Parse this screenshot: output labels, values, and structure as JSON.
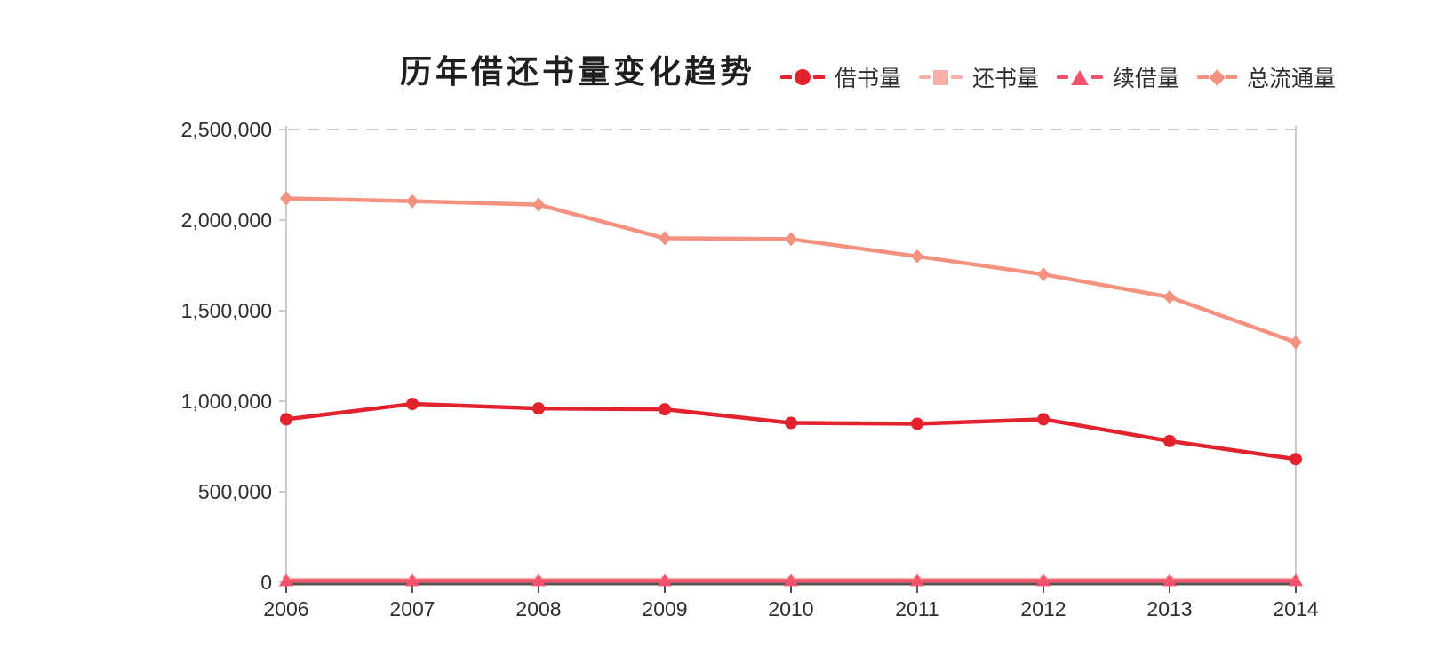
{
  "chart_data": {
    "type": "line",
    "title": "历年借还书量变化趋势",
    "categories": [
      "2006",
      "2007",
      "2008",
      "2009",
      "2010",
      "2011",
      "2012",
      "2013",
      "2014"
    ],
    "series": [
      {
        "key": "borrow",
        "name": "借书量",
        "marker": "circle",
        "color": "#e2232e",
        "values": [
          900000,
          985000,
          960000,
          955000,
          880000,
          875000,
          900000,
          780000,
          680000
        ]
      },
      {
        "key": "return",
        "name": "还书量",
        "marker": "square",
        "color": "#f6b0a7",
        "values": [
          15000,
          15000,
          15000,
          15000,
          15000,
          15000,
          15000,
          15000,
          15000
        ]
      },
      {
        "key": "renew",
        "name": "续借量",
        "marker": "triangle",
        "color": "#f4516c",
        "values": [
          8000,
          8000,
          8000,
          8000,
          8000,
          8000,
          8000,
          8000,
          8000
        ]
      },
      {
        "key": "total",
        "name": "总流通量",
        "marker": "diamond",
        "color": "#f4917f",
        "values": [
          2120000,
          2105000,
          2085000,
          1900000,
          1895000,
          1800000,
          1700000,
          1575000,
          1325000
        ]
      }
    ],
    "ylim": [
      0,
      2500000
    ],
    "yticks": [
      {
        "value": 2500000,
        "label": "2,500,000"
      },
      {
        "value": 2000000,
        "label": "2,000,000"
      },
      {
        "value": 1500000,
        "label": "1,500,000"
      },
      {
        "value": 1000000,
        "label": "1,000,000"
      },
      {
        "value": 500000,
        "label": "500,000"
      },
      {
        "value": 0,
        "label": "0"
      }
    ],
    "legend_position": "top-right",
    "grid": {
      "top_dashed_gridline": true,
      "other_gridlines": false
    }
  },
  "colors": {
    "background": "#ffffff",
    "axis_dark": "#57534b",
    "axis_light": "#cccccc",
    "gridline_dashed": "#cdcdcd",
    "tick_text": "#2e2e2e",
    "title_text": "#1f1f1f"
  }
}
